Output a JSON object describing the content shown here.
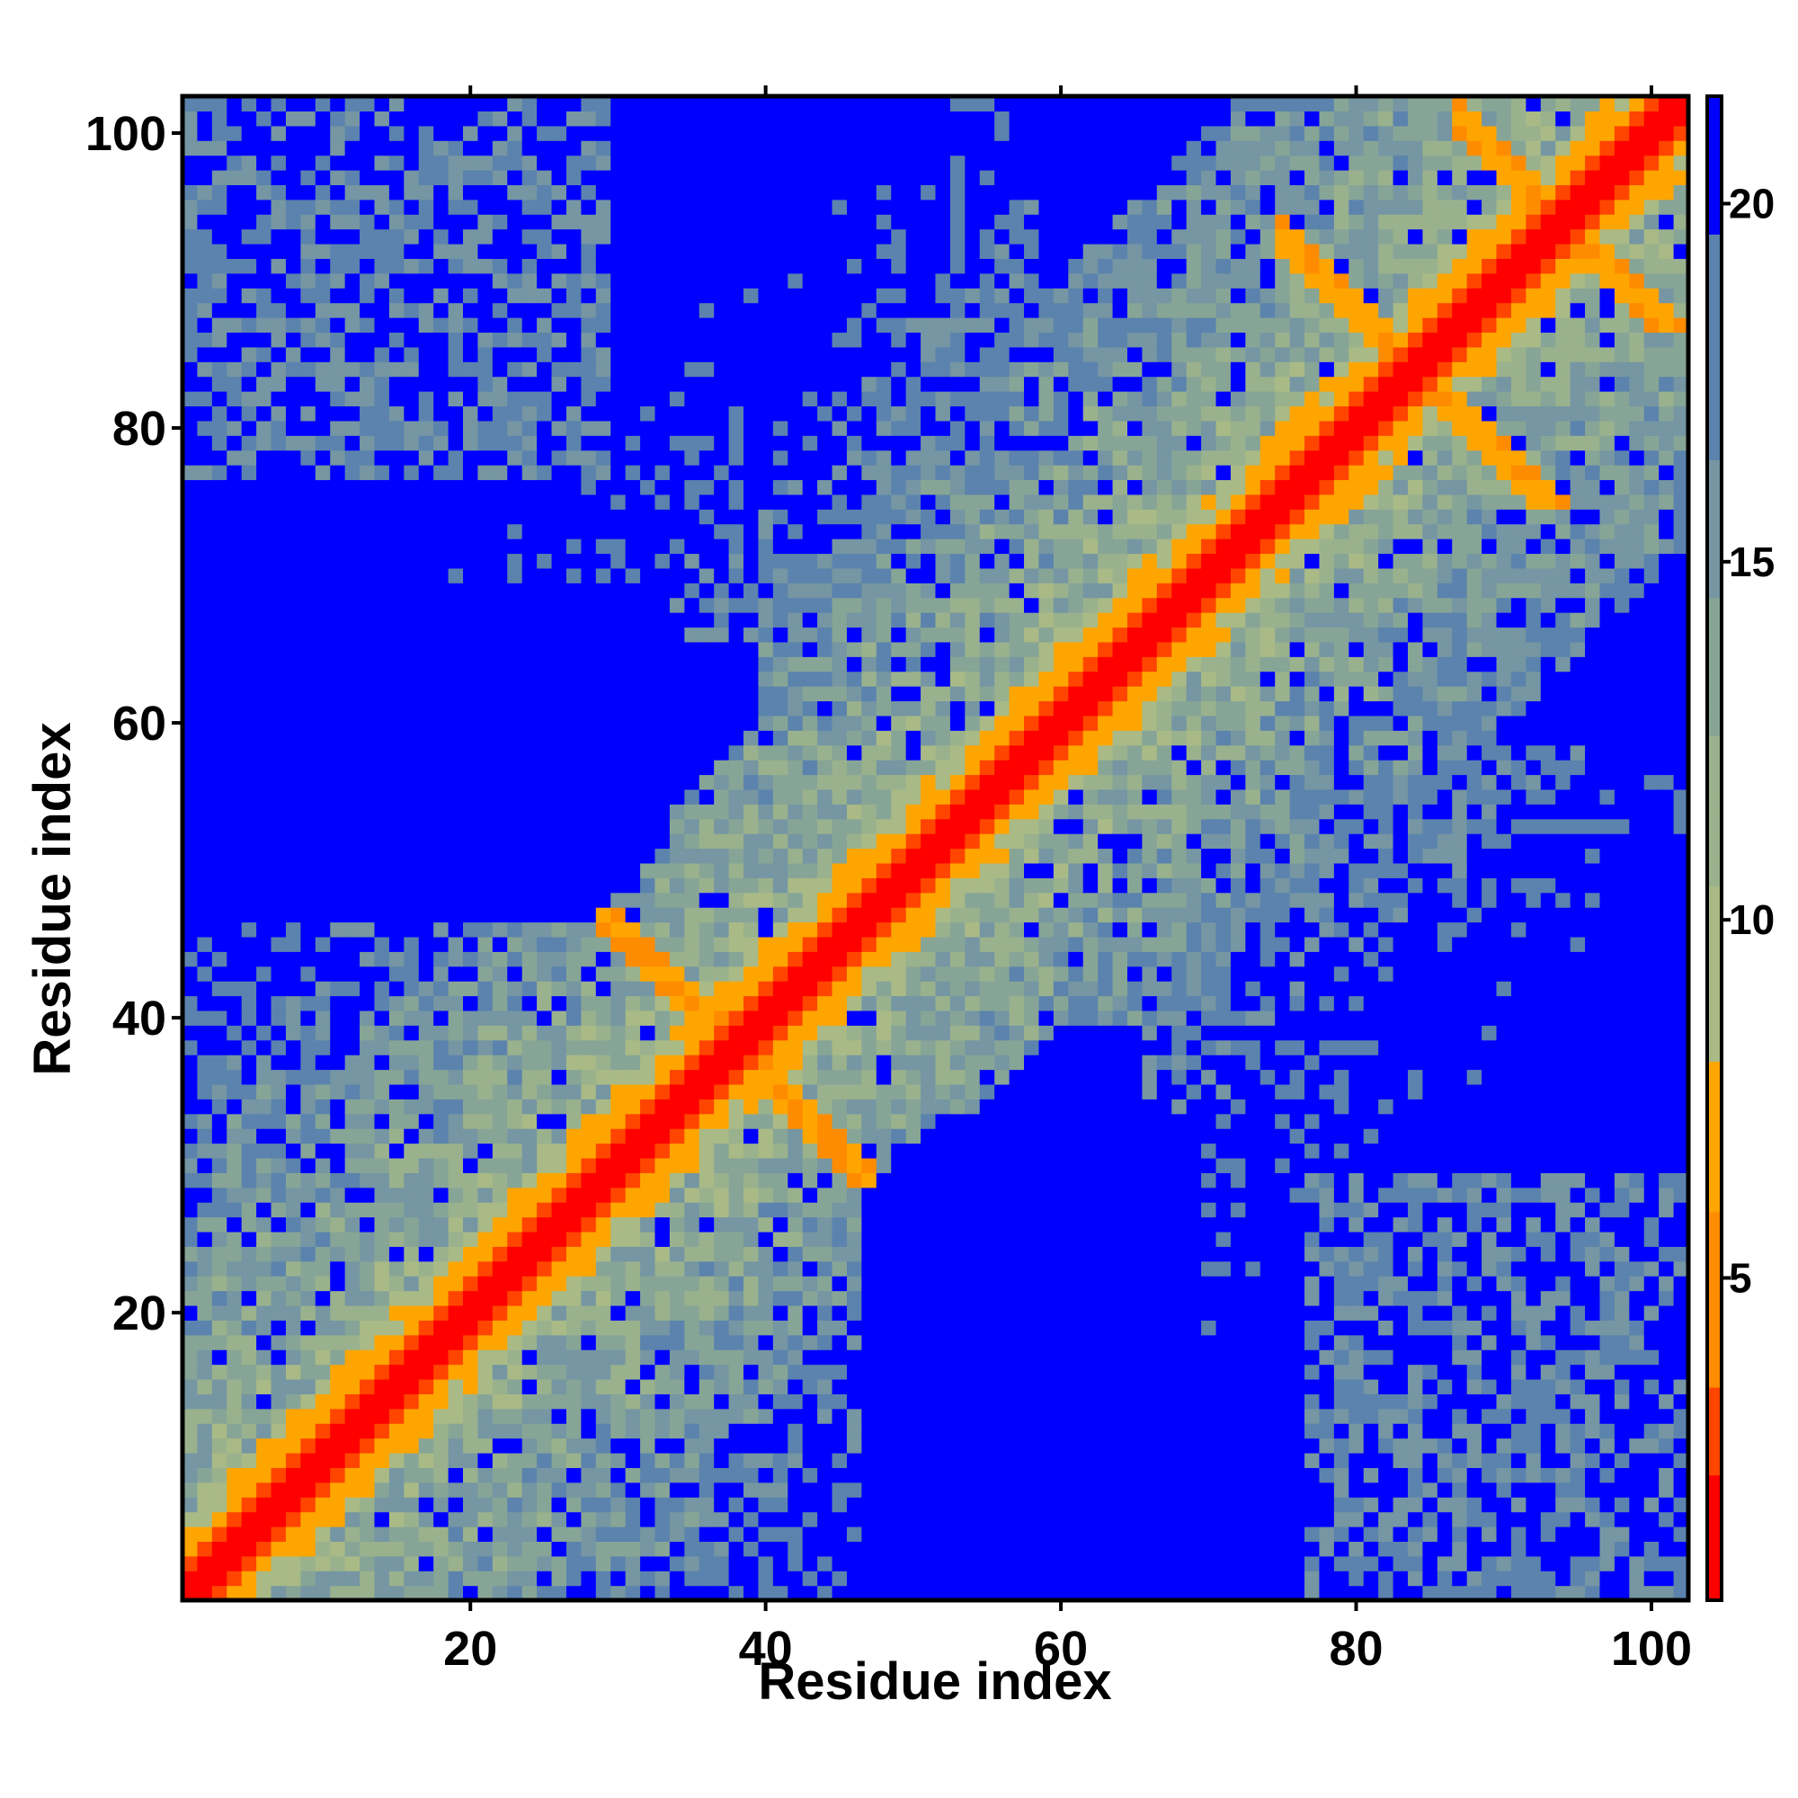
{
  "chart_data": {
    "type": "heatmap",
    "title": "",
    "xlabel": "Residue index",
    "ylabel": "Residue index",
    "n_residues": 102,
    "xlim": [
      1,
      102
    ],
    "ylim": [
      1,
      102
    ],
    "x_ticks": [
      20,
      40,
      60,
      80,
      100
    ],
    "y_ticks": [
      20,
      40,
      60,
      80,
      100
    ],
    "colorbar": {
      "range": [
        0.5,
        21.5
      ],
      "ticks": [
        5,
        10,
        15,
        20
      ],
      "colors": {
        "low": "#ff0000",
        "mid_low": "#ff8c00",
        "mid": "#9fb68a",
        "high": "#5b83ad",
        "saturated": "#0000ff"
      }
    },
    "values": "Pairwise residue distance map (symmetric): values near 1 along the diagonal (red), 4–8 in secondary-structure contacts (orange), 9–19 in the neighbourhood bands (green/steel-blue), and >=20 saturated (blue) in the off-diagonal blocks.",
    "contact_features": [
      {
        "kind": "helix-diagonal",
        "range": [
          1,
          102
        ]
      },
      {
        "kind": "anti-diagonal contact",
        "from": [
          26,
          50
        ],
        "to": [
          50,
          26
        ]
      },
      {
        "kind": "anti-diagonal contact",
        "from": [
          86,
          102
        ],
        "to": [
          102,
          86
        ]
      },
      {
        "kind": "anti-diagonal contact",
        "from": [
          94,
          74
        ],
        "to": [
          74,
          94
        ]
      }
    ]
  }
}
